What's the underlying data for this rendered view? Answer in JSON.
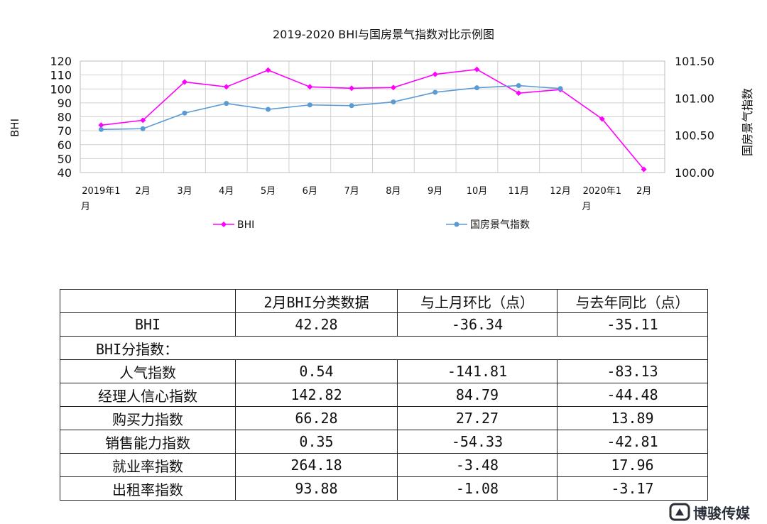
{
  "chart_data": {
    "type": "line",
    "title": "2019-2020 BHI与国房景气指数对比示例图",
    "ylabel_left": "BHI",
    "ylabel_right": "国房景气指数",
    "categories": [
      "2019年1月",
      "2月",
      "3月",
      "4月",
      "5月",
      "6月",
      "7月",
      "8月",
      "9月",
      "10月",
      "11月",
      "12月",
      "2020年1月",
      "2月"
    ],
    "y_left": {
      "min": 40,
      "max": 120,
      "step": 10,
      "ticks": [
        "40",
        "50",
        "60",
        "70",
        "80",
        "90",
        "100",
        "110",
        "120"
      ]
    },
    "y_right": {
      "min": 100.0,
      "max": 101.5,
      "ticks": [
        "100.00",
        "100.50",
        "101.00",
        "101.50"
      ]
    },
    "grid": true,
    "legend_position": "bottom",
    "series": [
      {
        "name": "BHI",
        "axis": "left",
        "color": "#ff00ff",
        "marker": "diamond",
        "values": [
          74,
          77.5,
          105,
          101.5,
          113.5,
          101.5,
          100.5,
          101,
          110.5,
          114,
          97,
          99.5,
          78.5,
          42.28
        ]
      },
      {
        "name": "国房景气指数",
        "axis": "right",
        "color": "#5b9bd5",
        "marker": "circle",
        "values": [
          100.58,
          100.59,
          100.8,
          100.93,
          100.85,
          100.91,
          100.9,
          100.95,
          101.08,
          101.14,
          101.17,
          101.13,
          null,
          null
        ]
      }
    ]
  },
  "table": {
    "headers": [
      "",
      "2月BHI分类数据",
      "与上月环比（点）",
      "与去年同比（点）"
    ],
    "bhi_row": [
      "BHI",
      "42.28",
      "-36.34",
      "-35.11"
    ],
    "subheading": "BHI分指数：",
    "rows": [
      [
        "人气指数",
        "0.54",
        "-141.81",
        "-83.13"
      ],
      [
        "经理人信心指数",
        "142.82",
        "84.79",
        "-44.48"
      ],
      [
        "购买力指数",
        "66.28",
        "27.27",
        "13.89"
      ],
      [
        "销售能力指数",
        "0.35",
        "-54.33",
        "-42.81"
      ],
      [
        "就业率指数",
        "264.18",
        "-3.48",
        "17.96"
      ],
      [
        "出租率指数",
        "93.88",
        "-1.08",
        "-3.17"
      ]
    ]
  },
  "watermark": {
    "text": "博骏传媒",
    "icon": "brand-logo-icon"
  }
}
